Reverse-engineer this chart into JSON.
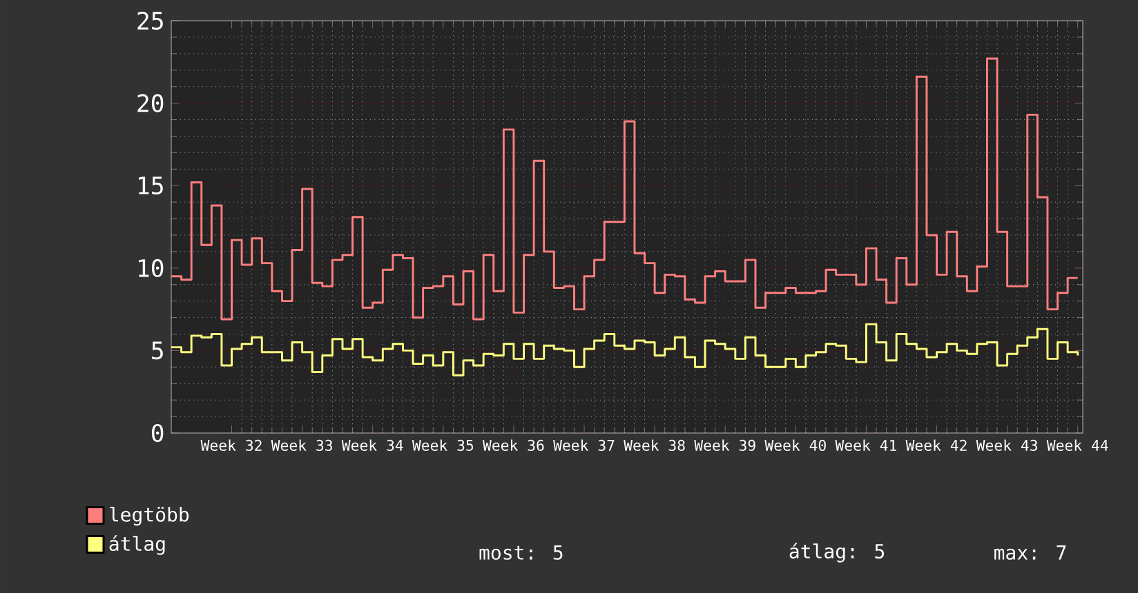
{
  "chart_data": {
    "type": "step",
    "categories": [
      null,
      null,
      null,
      null,
      null,
      null,
      "Week 32",
      null,
      null,
      null,
      null,
      null,
      null,
      "Week 33",
      null,
      null,
      null,
      null,
      null,
      null,
      "Week 34",
      null,
      null,
      null,
      null,
      null,
      null,
      "Week 35",
      null,
      null,
      null,
      null,
      null,
      null,
      "Week 36",
      null,
      null,
      null,
      null,
      null,
      null,
      "Week 37",
      null,
      null,
      null,
      null,
      null,
      null,
      "Week 38",
      null,
      null,
      null,
      null,
      null,
      null,
      "Week 39",
      null,
      null,
      null,
      null,
      null,
      null,
      "Week 40",
      null,
      null,
      null,
      null,
      null,
      null,
      "Week 41",
      null,
      null,
      null,
      null,
      null,
      null,
      "Week 42",
      null,
      null,
      null,
      null,
      null,
      null,
      "Week 43",
      null,
      null,
      null,
      null,
      null,
      null,
      "Week 44"
    ],
    "series": [
      {
        "name": "legtöbb",
        "color": "#ff7f7f",
        "values": [
          9.5,
          9.3,
          15.2,
          11.4,
          13.8,
          6.9,
          11.7,
          10.2,
          11.8,
          10.3,
          8.6,
          8.0,
          11.1,
          14.8,
          9.1,
          8.9,
          10.5,
          10.8,
          13.1,
          7.6,
          7.9,
          9.9,
          10.8,
          10.6,
          7.0,
          8.8,
          8.9,
          9.5,
          7.8,
          9.8,
          6.9,
          10.8,
          8.6,
          18.4,
          7.3,
          10.8,
          16.5,
          11.0,
          8.8,
          8.9,
          7.5,
          9.5,
          10.5,
          12.8,
          12.8,
          18.9,
          10.9,
          10.3,
          8.5,
          9.6,
          9.5,
          8.1,
          7.9,
          9.5,
          9.8,
          9.2,
          9.2,
          10.5,
          7.6,
          8.5,
          8.5,
          8.8,
          8.5,
          8.5,
          8.6,
          9.9,
          9.6,
          9.6,
          9.0,
          11.2,
          9.3,
          7.9,
          10.6,
          9.0,
          21.6,
          12.0,
          9.6,
          12.2,
          9.5,
          8.6,
          10.1,
          22.7,
          12.2,
          8.9,
          8.9,
          19.3,
          14.3,
          7.5,
          8.5,
          9.4,
          9.4
        ]
      },
      {
        "name": "átlag",
        "color": "#ffff7f",
        "values": [
          5.2,
          4.9,
          5.9,
          5.8,
          6.0,
          4.1,
          5.1,
          5.4,
          5.8,
          4.9,
          4.9,
          4.4,
          5.5,
          4.9,
          3.7,
          4.7,
          5.7,
          5.1,
          5.7,
          4.6,
          4.4,
          5.1,
          5.4,
          5.0,
          4.2,
          4.7,
          4.1,
          4.9,
          3.5,
          4.4,
          4.1,
          4.8,
          4.7,
          5.4,
          4.5,
          5.4,
          4.5,
          5.3,
          5.1,
          5.0,
          4.0,
          5.1,
          5.6,
          6.0,
          5.3,
          5.1,
          5.6,
          5.5,
          4.7,
          5.1,
          5.8,
          4.6,
          4.0,
          5.6,
          5.4,
          5.1,
          4.5,
          5.8,
          4.7,
          4.0,
          4.0,
          4.5,
          4.0,
          4.7,
          4.9,
          5.4,
          5.3,
          4.5,
          4.3,
          6.6,
          5.5,
          4.4,
          6.0,
          5.4,
          5.1,
          4.6,
          4.9,
          5.4,
          5.0,
          4.8,
          5.4,
          5.5,
          4.1,
          4.8,
          5.3,
          5.8,
          6.3,
          4.5,
          5.5,
          4.9,
          4.7
        ]
      }
    ],
    "ylim": [
      0,
      25
    ],
    "yticks": [
      0,
      5,
      10,
      15,
      20,
      25
    ],
    "grid": true,
    "legend": "bottom",
    "annotations": [
      "most: 5",
      "átlag: 5",
      "max: 7"
    ]
  }
}
